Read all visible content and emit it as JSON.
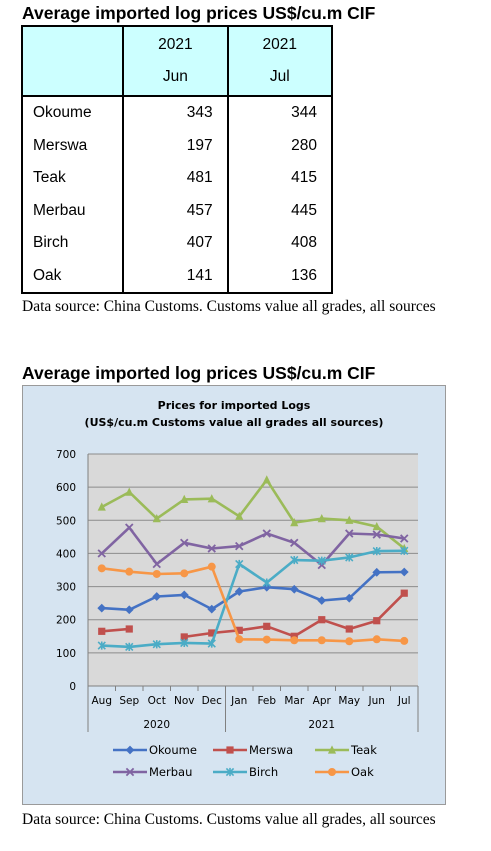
{
  "section1": {
    "heading": "Average imported log prices US$/cu.m CIF",
    "table": {
      "columns": [
        {
          "year": "2021",
          "month": "Jun"
        },
        {
          "year": "2021",
          "month": "Jul"
        }
      ],
      "rows": [
        {
          "name": "Okoume",
          "jun": "343",
          "jul": "344"
        },
        {
          "name": "Merswa",
          "jun": "197",
          "jul": "280"
        },
        {
          "name": "Teak",
          "jun": "481",
          "jul": "415"
        },
        {
          "name": "Merbau",
          "jun": "457",
          "jul": "445"
        },
        {
          "name": "Birch",
          "jun": "407",
          "jul": "408"
        },
        {
          "name": "Oak",
          "jun": "141",
          "jul": "136"
        }
      ]
    },
    "note": "Data source: China Customs. Customs value all grades, all sources"
  },
  "section2": {
    "heading": "Average imported log prices US$/cu.m CIF",
    "note": "Data source: China Customs. Customs value all grades, all sources"
  },
  "colors": {
    "table_header": "#ccffff",
    "chart_bg": "#d6e4f1",
    "plot_bg": "#d9d9d9",
    "okoume": "#4472c4",
    "merswa": "#c0504d",
    "teak": "#9bbb59",
    "merbau": "#8064a2",
    "birch": "#4bacc6",
    "oak": "#f79646"
  },
  "chart_data": {
    "type": "line",
    "title": "Prices for imported Logs",
    "subtitle": "(US$/cu.m Customs value all grades all sources)",
    "categories": [
      "Aug",
      "Sep",
      "Oct",
      "Nov",
      "Dec",
      "Jan",
      "Feb",
      "Mar",
      "Apr",
      "May",
      "Jun",
      "Jul"
    ],
    "year_groups": [
      {
        "label": "2020",
        "start": 0,
        "end": 4
      },
      {
        "label": "2021",
        "start": 5,
        "end": 11
      }
    ],
    "ylim": [
      0,
      700
    ],
    "yticks": [
      "0",
      "100",
      "200",
      "300",
      "400",
      "500",
      "600",
      "700"
    ],
    "grid": true,
    "legend_position": "bottom",
    "series": [
      {
        "name": "Okoume",
        "color_key": "okoume",
        "marker": "diamond",
        "values": [
          235,
          230,
          270,
          275,
          232,
          285,
          298,
          292,
          258,
          265,
          343,
          344
        ]
      },
      {
        "name": "Merswa",
        "color_key": "merswa",
        "marker": "square",
        "values": [
          165,
          172,
          null,
          148,
          160,
          168,
          180,
          150,
          200,
          172,
          197,
          280
        ]
      },
      {
        "name": "Teak",
        "color_key": "teak",
        "marker": "triangle",
        "values": [
          540,
          585,
          505,
          563,
          565,
          512,
          622,
          493,
          505,
          500,
          481,
          415
        ]
      },
      {
        "name": "Merbau",
        "color_key": "merbau",
        "marker": "x",
        "values": [
          400,
          478,
          368,
          432,
          415,
          422,
          460,
          432,
          365,
          460,
          457,
          445
        ]
      },
      {
        "name": "Birch",
        "color_key": "birch",
        "marker": "star",
        "values": [
          122,
          118,
          126,
          130,
          128,
          368,
          312,
          380,
          378,
          388,
          407,
          408
        ]
      },
      {
        "name": "Oak",
        "color_key": "oak",
        "marker": "circle",
        "values": [
          355,
          345,
          338,
          340,
          360,
          141,
          140,
          138,
          138,
          135,
          141,
          136
        ]
      }
    ]
  }
}
